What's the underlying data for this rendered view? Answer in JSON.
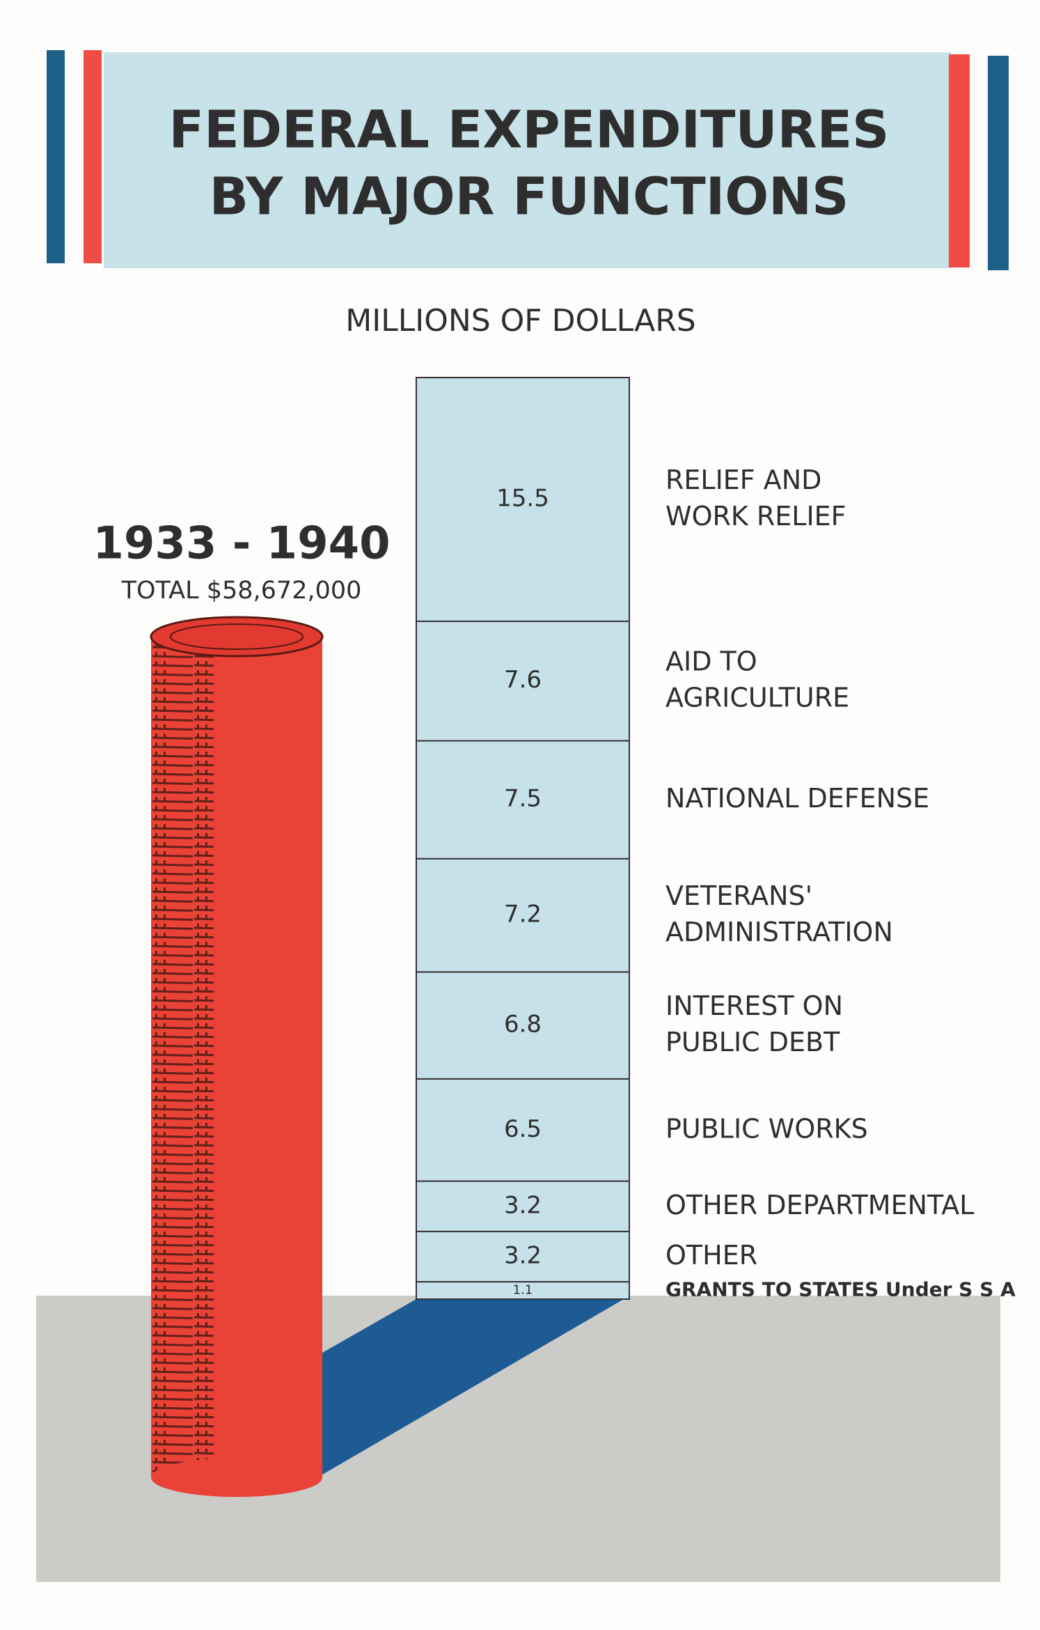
{
  "chart_data": {
    "type": "stacked-column",
    "title": [
      "FEDERAL EXPENDITURES",
      "BY MAJOR FUNCTIONS"
    ],
    "subtitle": "MILLIONS OF DOLLARS",
    "annotations": [
      "1933 - 1940",
      "TOTAL $58,672,000"
    ],
    "categories": [
      [
        "RELIEF AND",
        "WORK RELIEF"
      ],
      [
        "AID TO",
        "AGRICULTURE"
      ],
      [
        "NATIONAL DEFENSE"
      ],
      [
        "VETERANS'",
        "ADMINISTRATION"
      ],
      [
        "INTEREST ON",
        "PUBLIC DEBT"
      ],
      [
        "PUBLIC WORKS"
      ],
      [
        "OTHER DEPARTMENTAL"
      ],
      [
        "OTHER"
      ],
      [
        "GRANTS TO STATES Under S S A"
      ]
    ],
    "values": [
      15.5,
      7.6,
      7.5,
      7.2,
      6.8,
      6.5,
      3.2,
      3.2,
      1.1
    ],
    "color": "#c6e1ea"
  }
}
